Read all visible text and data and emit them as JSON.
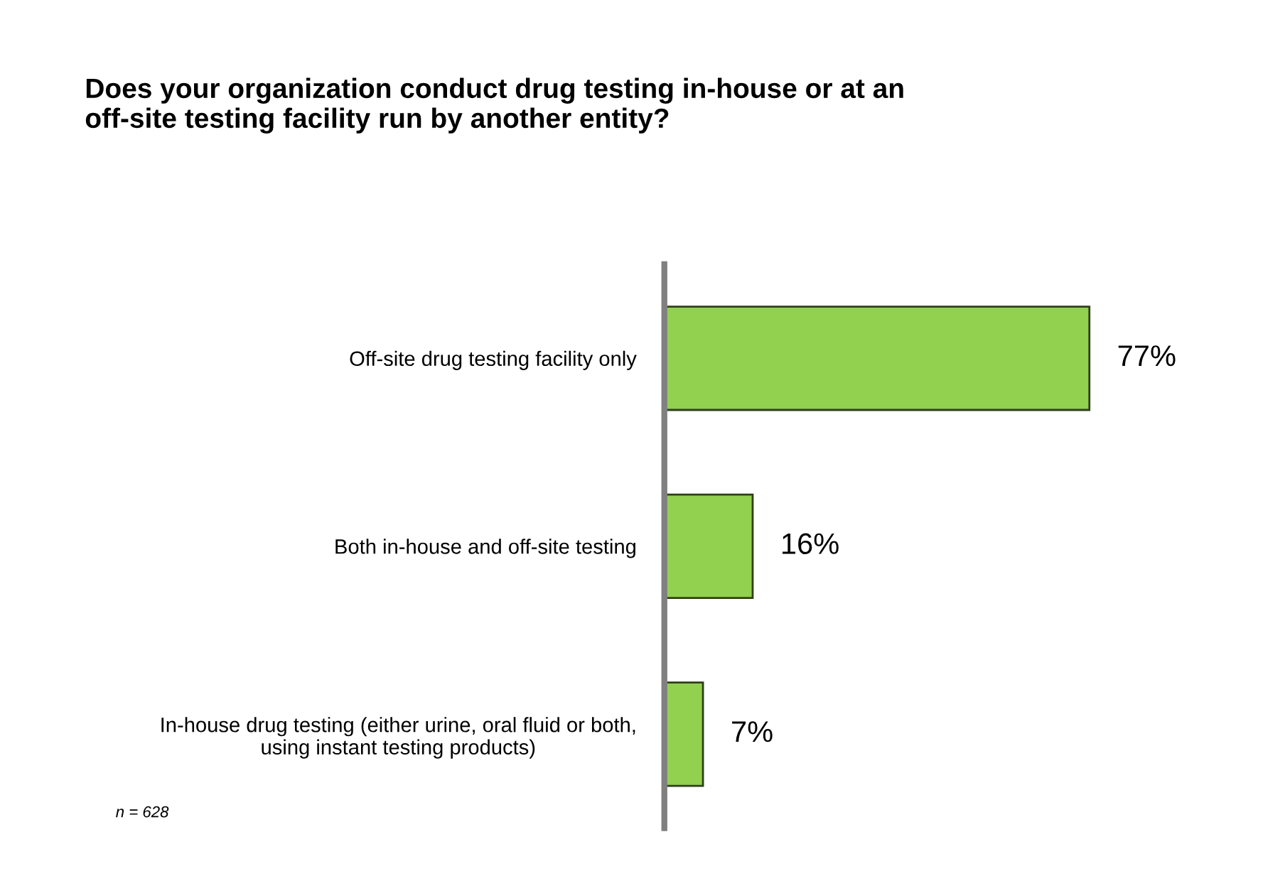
{
  "chart_data": {
    "type": "bar",
    "orientation": "horizontal",
    "title": "Does your organization conduct drug testing in-house or at an\noff-site testing facility run by another entity?",
    "categories": [
      "Off-site drug testing facility only",
      "Both in-house and off-site testing",
      "In-house drug testing (either urine, oral fluid or both,\nusing instant testing products)"
    ],
    "values": [
      77,
      16,
      7
    ],
    "color": "#92d050",
    "value_labels": [
      "77%",
      "16%",
      "7%"
    ],
    "tick_labels": "y",
    "grid": false,
    "legend": false,
    "annotations": [
      "n = 628"
    ]
  }
}
